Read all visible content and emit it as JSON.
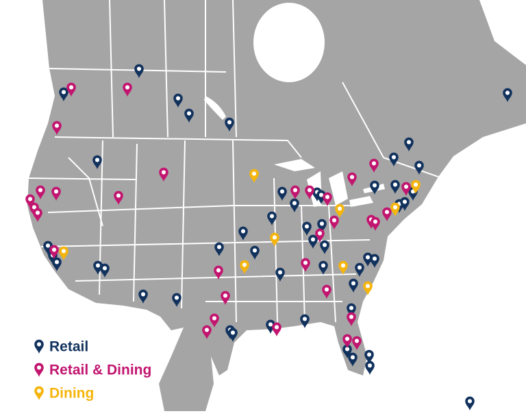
{
  "legend": [
    {
      "label": "Retail",
      "color": "#12325e"
    },
    {
      "label": "Retail & Dining",
      "color": "#c2156f"
    },
    {
      "label": "Dining",
      "color": "#f5b50c"
    }
  ]
}
